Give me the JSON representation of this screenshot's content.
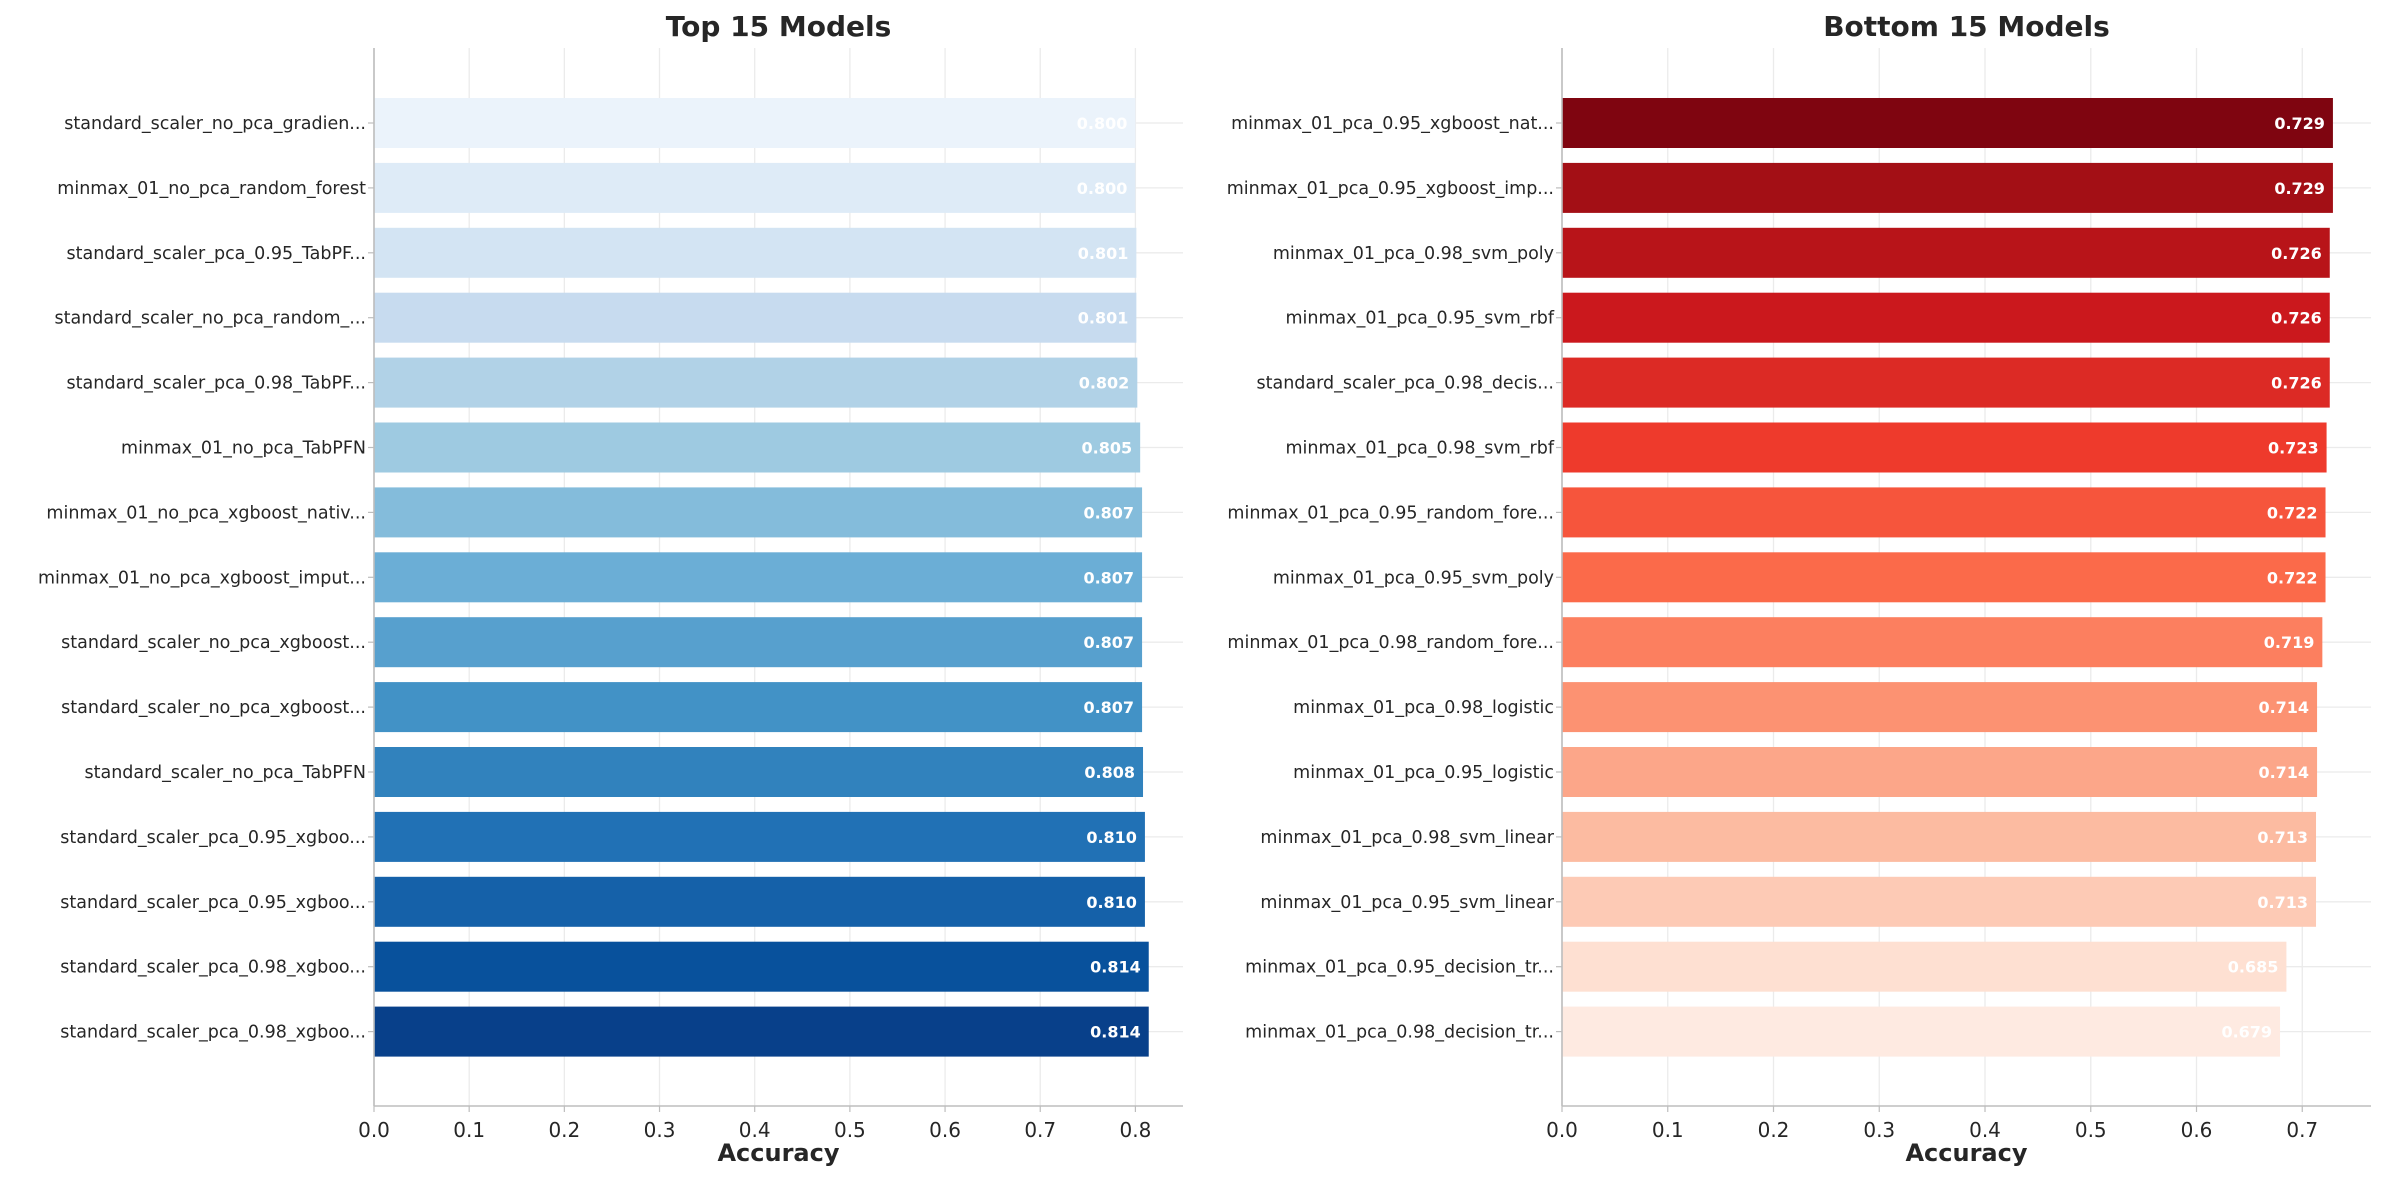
{
  "chart_data": [
    {
      "type": "bar",
      "orientation": "horizontal",
      "title": "Top 15 Models",
      "xlabel": "Accuracy",
      "ylabel": "",
      "xlim": [
        0,
        0.85
      ],
      "xticks": [
        0.0,
        0.1,
        0.2,
        0.3,
        0.4,
        0.5,
        0.6,
        0.7,
        0.8
      ],
      "grid": true,
      "colormap": "Blues",
      "categories": [
        "standard_scaler_no_pca_gradien...",
        "minmax_01_no_pca_random_forest",
        "standard_scaler_pca_0.95_TabPF...",
        "standard_scaler_no_pca_random_...",
        "standard_scaler_pca_0.98_TabPF...",
        "minmax_01_no_pca_TabPFN",
        "minmax_01_no_pca_xgboost_nativ...",
        "minmax_01_no_pca_xgboost_imput...",
        "standard_scaler_no_pca_xgboost...",
        "standard_scaler_no_pca_xgboost...",
        "standard_scaler_no_pca_TabPFN",
        "standard_scaler_pca_0.95_xgboo...",
        "standard_scaler_pca_0.95_xgboo...",
        "standard_scaler_pca_0.98_xgboo...",
        "standard_scaler_pca_0.98_xgboo..."
      ],
      "values": [
        0.8,
        0.8,
        0.801,
        0.801,
        0.802,
        0.805,
        0.807,
        0.807,
        0.807,
        0.807,
        0.808,
        0.81,
        0.81,
        0.814,
        0.814
      ],
      "value_labels": [
        "0.800",
        "0.800",
        "0.801",
        "0.801",
        "0.802",
        "0.805",
        "0.807",
        "0.807",
        "0.807",
        "0.807",
        "0.808",
        "0.810",
        "0.810",
        "0.814",
        "0.814"
      ],
      "colors": [
        "#ebf3fb",
        "#deebf7",
        "#d3e4f3",
        "#c7dbef",
        "#b1d2e7",
        "#9ecae1",
        "#84bcdb",
        "#6baed6",
        "#57a0ce",
        "#4292c6",
        "#3182bd",
        "#2171b5",
        "#1561a9",
        "#08519c",
        "#08408a"
      ]
    },
    {
      "type": "bar",
      "orientation": "horizontal",
      "title": "Bottom 15 Models",
      "xlabel": "Accuracy",
      "ylabel": "",
      "xlim": [
        0,
        0.765
      ],
      "xticks": [
        0.0,
        0.1,
        0.2,
        0.3,
        0.4,
        0.5,
        0.6,
        0.7
      ],
      "grid": true,
      "colormap": "Reds",
      "categories": [
        "minmax_01_pca_0.95_xgboost_nat...",
        "minmax_01_pca_0.95_xgboost_imp...",
        "minmax_01_pca_0.98_svm_poly",
        "minmax_01_pca_0.95_svm_rbf",
        "standard_scaler_pca_0.98_decis...",
        "minmax_01_pca_0.98_svm_rbf",
        "minmax_01_pca_0.95_random_fore...",
        "minmax_01_pca_0.95_svm_poly",
        "minmax_01_pca_0.98_random_fore...",
        "minmax_01_pca_0.98_logistic",
        "minmax_01_pca_0.95_logistic",
        "minmax_01_pca_0.98_svm_linear",
        "minmax_01_pca_0.95_svm_linear",
        "minmax_01_pca_0.95_decision_tr...",
        "minmax_01_pca_0.98_decision_tr..."
      ],
      "values": [
        0.729,
        0.729,
        0.726,
        0.726,
        0.726,
        0.723,
        0.722,
        0.722,
        0.719,
        0.714,
        0.714,
        0.713,
        0.713,
        0.685,
        0.679
      ],
      "value_labels": [
        "0.729",
        "0.729",
        "0.726",
        "0.726",
        "0.726",
        "0.723",
        "0.722",
        "0.722",
        "0.719",
        "0.714",
        "0.714",
        "0.713",
        "0.713",
        "0.685",
        "0.679"
      ],
      "colors": [
        "#7f0510",
        "#a30f15",
        "#b81419",
        "#cb181d",
        "#dc2a25",
        "#ee3a2c",
        "#f6553c",
        "#fb6a4a",
        "#fc7f5f",
        "#fc9272",
        "#fca689",
        "#fcbba1",
        "#fdcab5",
        "#fee0d2",
        "#feeae1"
      ]
    }
  ]
}
